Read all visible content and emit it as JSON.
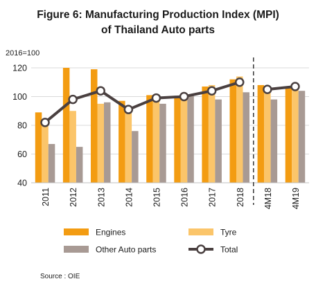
{
  "chart_data": {
    "type": "bar",
    "title": "Figure 6: Manufacturing Production Index (MPI)",
    "subtitle": "of Thailand Auto parts",
    "unit_label": "2016=100",
    "source": "Source : OIE",
    "categories": [
      "2011",
      "2012",
      "2013",
      "2014",
      "2015",
      "2016",
      "2017",
      "2018",
      "4M18",
      "4M19"
    ],
    "ylim": [
      40,
      120
    ],
    "yticks": [
      40,
      60,
      80,
      100,
      120
    ],
    "grid": "horizontal",
    "divider_after": "2018",
    "series": [
      {
        "name": "Engines",
        "type": "bar",
        "color": "#f39c12",
        "values": [
          89,
          120,
          119,
          97,
          101,
          100,
          107,
          112,
          108,
          106
        ]
      },
      {
        "name": "Tyre",
        "type": "bar",
        "color": "#fbc56a",
        "values": [
          80,
          90,
          95,
          92,
          101,
          100,
          108,
          114,
          106,
          105
        ]
      },
      {
        "name": "Other Auto parts",
        "type": "bar",
        "color": "#a89a94",
        "values": [
          67,
          65,
          96,
          76,
          95,
          101,
          98,
          103,
          98,
          104
        ]
      },
      {
        "name": "Total",
        "type": "line",
        "color": "#4a4040",
        "values": [
          82,
          98,
          104,
          91,
          99,
          100,
          104,
          110,
          105,
          107
        ]
      }
    ],
    "legend_position": "bottom"
  }
}
